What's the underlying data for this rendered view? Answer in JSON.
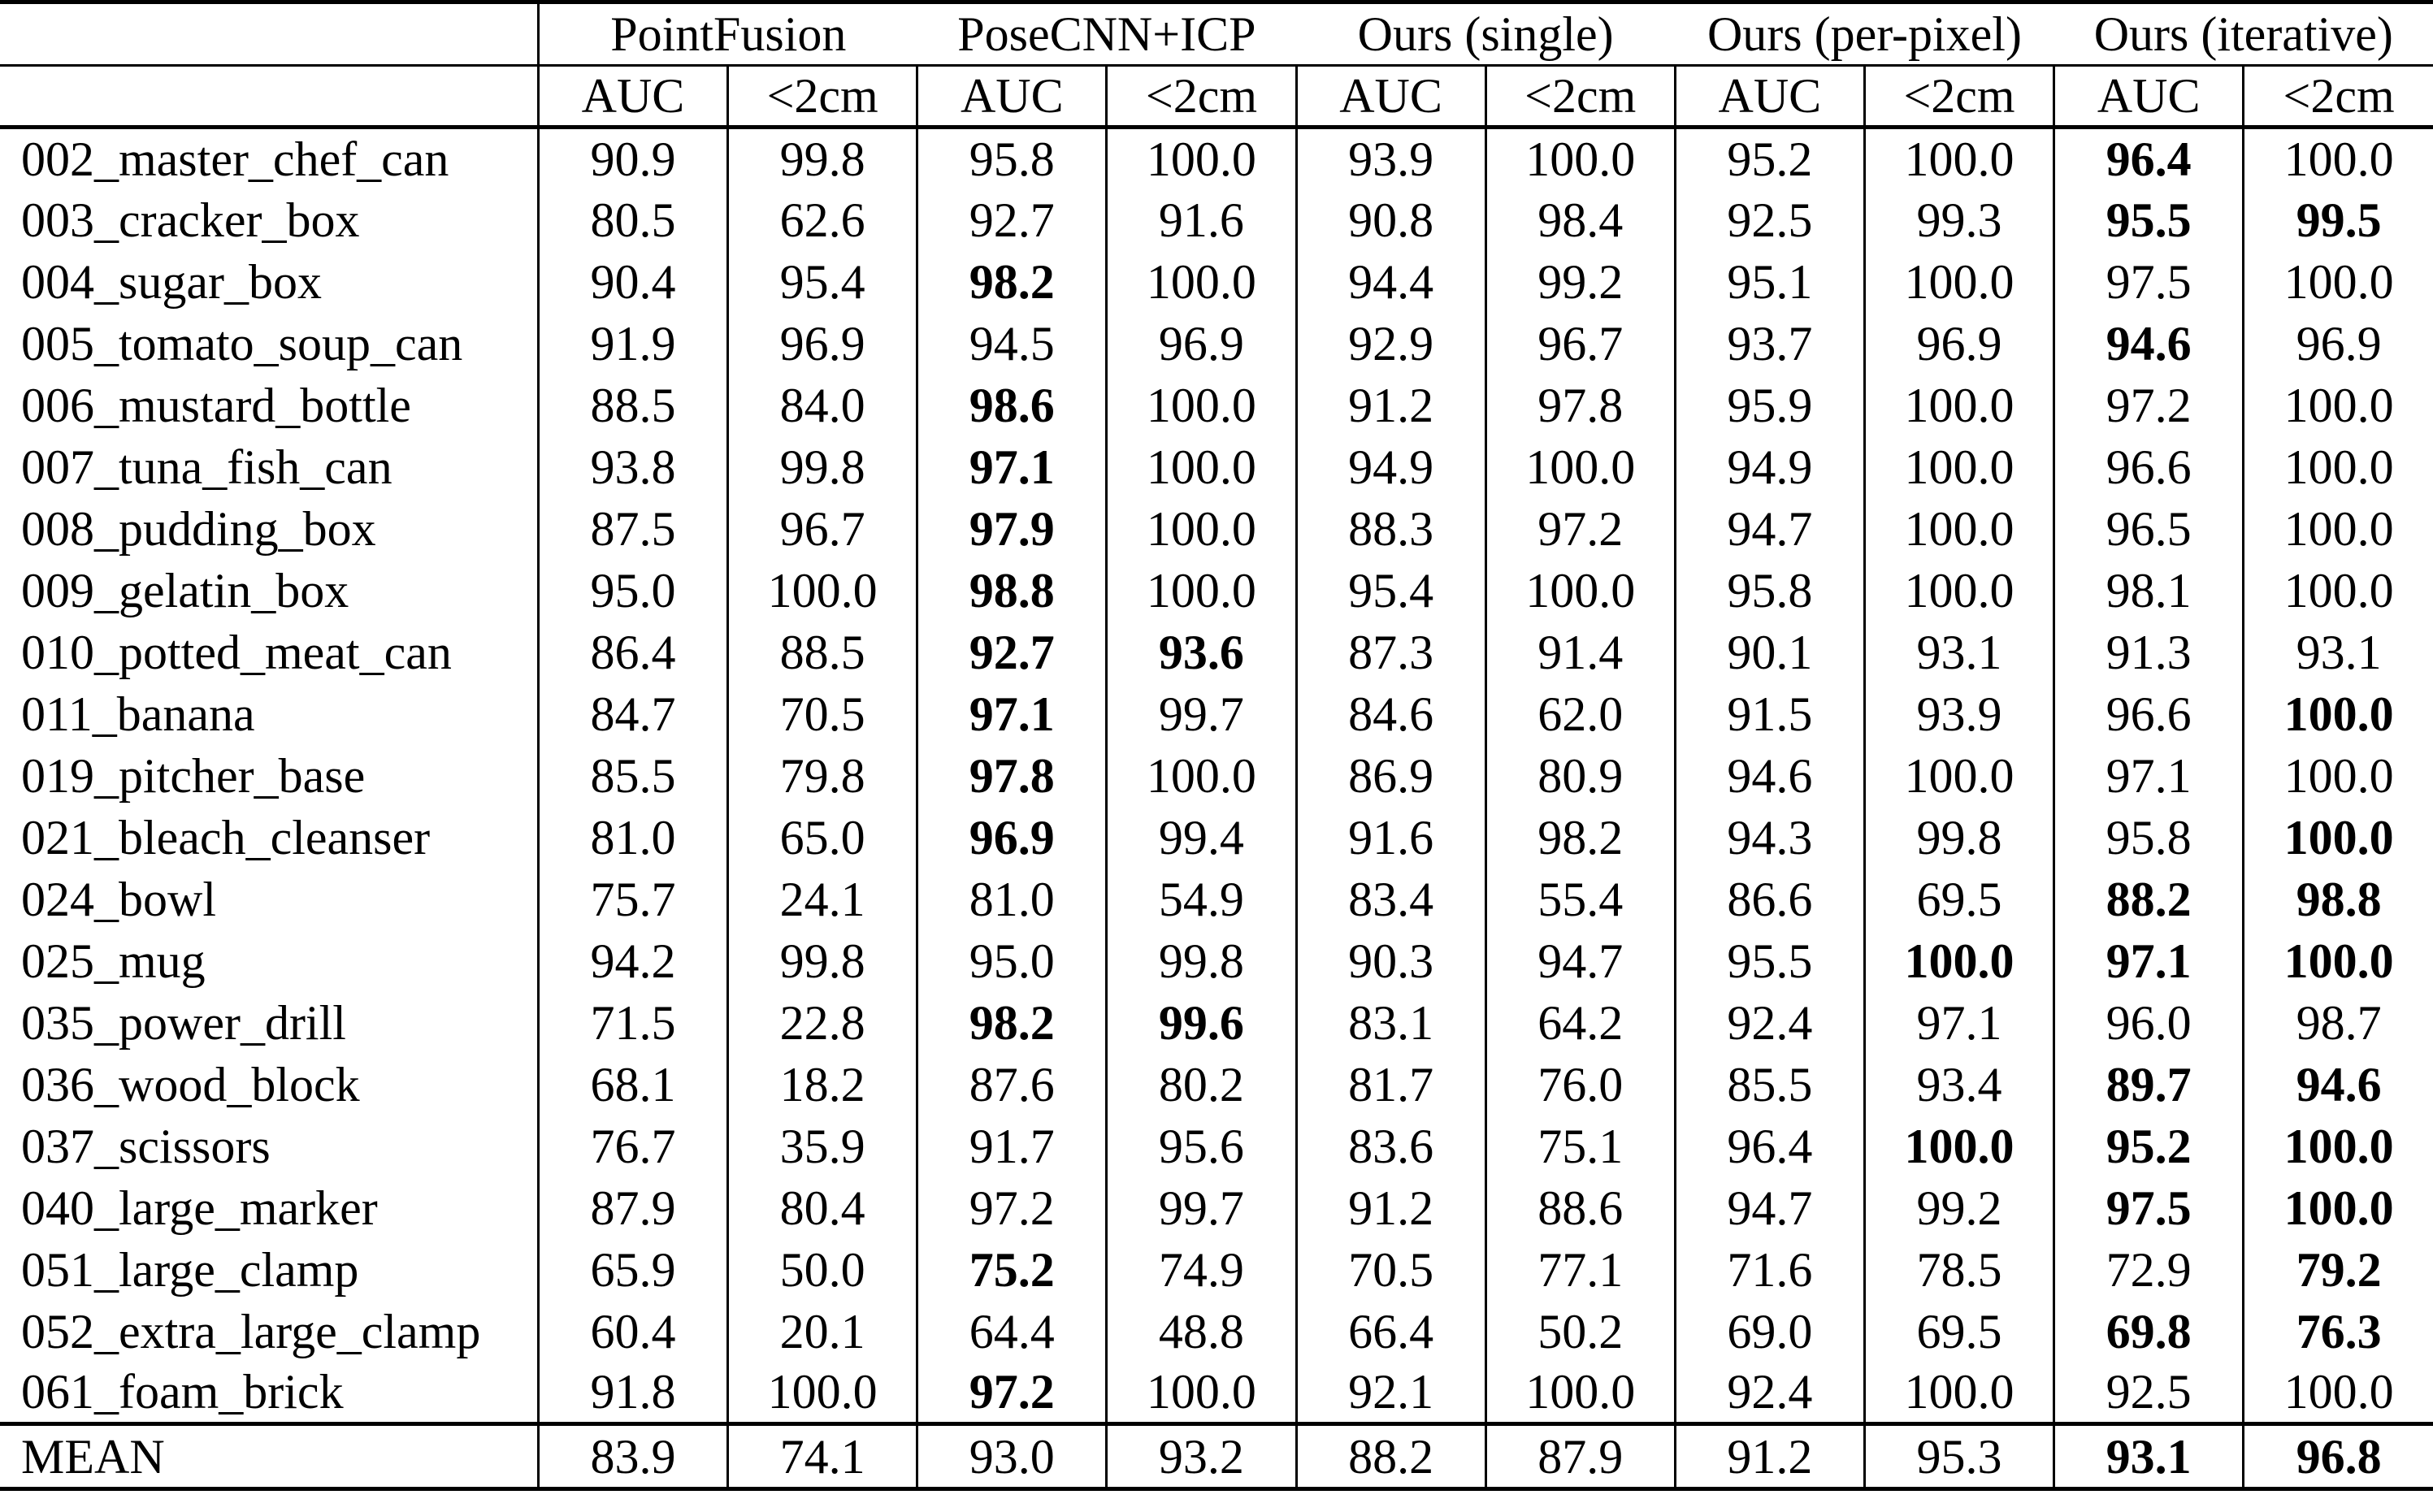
{
  "table": {
    "col_groups": [
      {
        "label": "PointFusion"
      },
      {
        "label": "PoseCNN+ICP"
      },
      {
        "label": "Ours (single)"
      },
      {
        "label": "Ours (per-pixel)"
      },
      {
        "label": "Ours (iterative)"
      }
    ],
    "sub_headers": [
      "AUC",
      "<2cm"
    ],
    "rows": [
      {
        "name": "002_master_chef_can",
        "values": [
          "90.9",
          "99.8",
          "95.8",
          "100.0",
          "93.9",
          "100.0",
          "95.2",
          "100.0",
          "96.4",
          "100.0"
        ],
        "bold": [
          8
        ]
      },
      {
        "name": "003_cracker_box",
        "values": [
          "80.5",
          "62.6",
          "92.7",
          "91.6",
          "90.8",
          "98.4",
          "92.5",
          "99.3",
          "95.5",
          "99.5"
        ],
        "bold": [
          8,
          9
        ]
      },
      {
        "name": "004_sugar_box",
        "values": [
          "90.4",
          "95.4",
          "98.2",
          "100.0",
          "94.4",
          "99.2",
          "95.1",
          "100.0",
          "97.5",
          "100.0"
        ],
        "bold": [
          2
        ]
      },
      {
        "name": "005_tomato_soup_can",
        "values": [
          "91.9",
          "96.9",
          "94.5",
          "96.9",
          "92.9",
          "96.7",
          "93.7",
          "96.9",
          "94.6",
          "96.9"
        ],
        "bold": [
          8
        ]
      },
      {
        "name": "006_mustard_bottle",
        "values": [
          "88.5",
          "84.0",
          "98.6",
          "100.0",
          "91.2",
          "97.8",
          "95.9",
          "100.0",
          "97.2",
          "100.0"
        ],
        "bold": [
          2
        ]
      },
      {
        "name": "007_tuna_fish_can",
        "values": [
          "93.8",
          "99.8",
          "97.1",
          "100.0",
          "94.9",
          "100.0",
          "94.9",
          "100.0",
          "96.6",
          "100.0"
        ],
        "bold": [
          2
        ]
      },
      {
        "name": "008_pudding_box",
        "values": [
          "87.5",
          "96.7",
          "97.9",
          "100.0",
          "88.3",
          "97.2",
          "94.7",
          "100.0",
          "96.5",
          "100.0"
        ],
        "bold": [
          2
        ]
      },
      {
        "name": "009_gelatin_box",
        "values": [
          "95.0",
          "100.0",
          "98.8",
          "100.0",
          "95.4",
          "100.0",
          "95.8",
          "100.0",
          "98.1",
          "100.0"
        ],
        "bold": [
          2
        ]
      },
      {
        "name": "010_potted_meat_can",
        "values": [
          "86.4",
          "88.5",
          "92.7",
          "93.6",
          "87.3",
          "91.4",
          "90.1",
          "93.1",
          "91.3",
          "93.1"
        ],
        "bold": [
          2,
          3
        ]
      },
      {
        "name": "011_banana",
        "values": [
          "84.7",
          "70.5",
          "97.1",
          "99.7",
          "84.6",
          "62.0",
          "91.5",
          "93.9",
          "96.6",
          "100.0"
        ],
        "bold": [
          2,
          9
        ]
      },
      {
        "name": "019_pitcher_base",
        "values": [
          "85.5",
          "79.8",
          "97.8",
          "100.0",
          "86.9",
          "80.9",
          "94.6",
          "100.0",
          "97.1",
          "100.0"
        ],
        "bold": [
          2
        ]
      },
      {
        "name": "021_bleach_cleanser",
        "values": [
          "81.0",
          "65.0",
          "96.9",
          "99.4",
          "91.6",
          "98.2",
          "94.3",
          "99.8",
          "95.8",
          "100.0"
        ],
        "bold": [
          2,
          9
        ]
      },
      {
        "name": "024_bowl",
        "values": [
          "75.7",
          "24.1",
          "81.0",
          "54.9",
          "83.4",
          "55.4",
          "86.6",
          "69.5",
          "88.2",
          "98.8"
        ],
        "bold": [
          8,
          9
        ]
      },
      {
        "name": "025_mug",
        "values": [
          "94.2",
          "99.8",
          "95.0",
          "99.8",
          "90.3",
          "94.7",
          "95.5",
          "100.0",
          "97.1",
          "100.0"
        ],
        "bold": [
          7,
          8,
          9
        ]
      },
      {
        "name": "035_power_drill",
        "values": [
          "71.5",
          "22.8",
          "98.2",
          "99.6",
          "83.1",
          "64.2",
          "92.4",
          "97.1",
          "96.0",
          "98.7"
        ],
        "bold": [
          2,
          3
        ]
      },
      {
        "name": "036_wood_block",
        "values": [
          "68.1",
          "18.2",
          "87.6",
          "80.2",
          "81.7",
          "76.0",
          "85.5",
          "93.4",
          "89.7",
          "94.6"
        ],
        "bold": [
          8,
          9
        ]
      },
      {
        "name": "037_scissors",
        "values": [
          "76.7",
          "35.9",
          "91.7",
          "95.6",
          "83.6",
          "75.1",
          "96.4",
          "100.0",
          "95.2",
          "100.0"
        ],
        "bold": [
          7,
          8,
          9
        ]
      },
      {
        "name": "040_large_marker",
        "values": [
          "87.9",
          "80.4",
          "97.2",
          "99.7",
          "91.2",
          "88.6",
          "94.7",
          "99.2",
          "97.5",
          "100.0"
        ],
        "bold": [
          8,
          9
        ]
      },
      {
        "name": "051_large_clamp",
        "values": [
          "65.9",
          "50.0",
          "75.2",
          "74.9",
          "70.5",
          "77.1",
          "71.6",
          "78.5",
          "72.9",
          "79.2"
        ],
        "bold": [
          2,
          9
        ]
      },
      {
        "name": "052_extra_large_clamp",
        "values": [
          "60.4",
          "20.1",
          "64.4",
          "48.8",
          "66.4",
          "50.2",
          "69.0",
          "69.5",
          "69.8",
          "76.3"
        ],
        "bold": [
          8,
          9
        ]
      },
      {
        "name": "061_foam_brick",
        "values": [
          "91.8",
          "100.0",
          "97.2",
          "100.0",
          "92.1",
          "100.0",
          "92.4",
          "100.0",
          "92.5",
          "100.0"
        ],
        "bold": [
          2
        ]
      }
    ],
    "mean_row": {
      "name": "MEAN",
      "values": [
        "83.9",
        "74.1",
        "93.0",
        "93.2",
        "88.2",
        "87.9",
        "91.2",
        "95.3",
        "93.1",
        "96.8"
      ],
      "bold": [
        8,
        9
      ]
    }
  }
}
